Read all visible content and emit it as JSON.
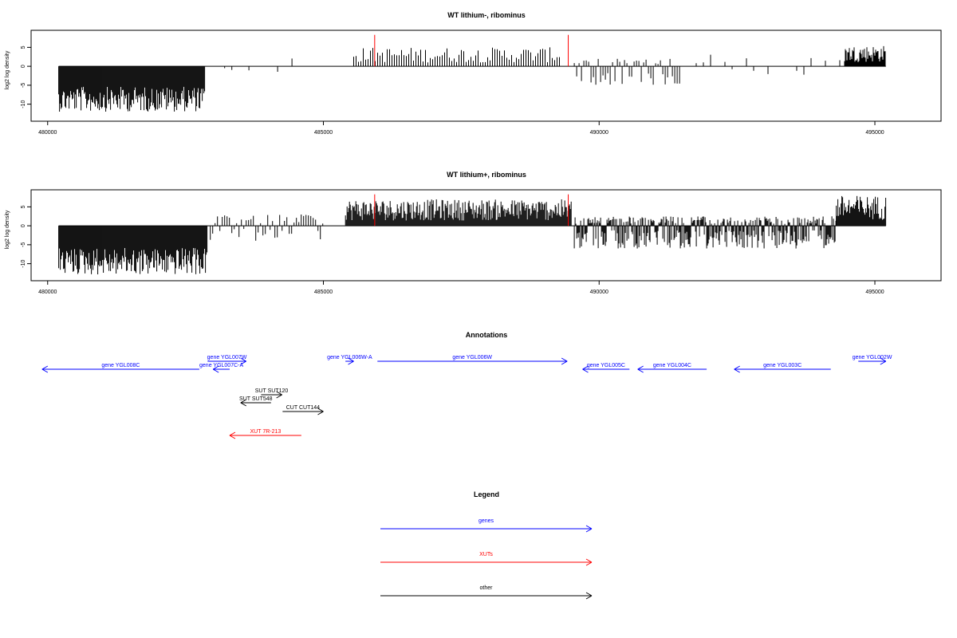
{
  "chart_data": [
    {
      "type": "bar",
      "title": "WT lithium-, ribominus",
      "xlabel": "",
      "ylabel": "log2 log density",
      "xlim": [
        479700,
        496200
      ],
      "ylim": [
        -14.5,
        9.5
      ],
      "x_ticks": [
        480000,
        485000,
        490000,
        495000
      ],
      "y_ticks": [
        -10,
        -5,
        0,
        5
      ],
      "x_tick_labels": [
        "480000",
        "485000",
        "490000",
        "495000"
      ],
      "y_tick_labels": [
        "-10",
        "-5",
        "0",
        "5"
      ],
      "grid": false,
      "profile": [
        {
          "x0": 480200,
          "x1": 482850,
          "min": -12,
          "max": 0,
          "density": "dense"
        },
        {
          "x0": 482950,
          "x1": 483600,
          "min": -1,
          "max": 0,
          "density": "sparse"
        },
        {
          "x0": 483650,
          "x1": 484700,
          "min": -2,
          "max": 2.5,
          "density": "sparse"
        },
        {
          "x0": 485550,
          "x1": 489300,
          "min": 0,
          "max": 5,
          "density": "medium"
        },
        {
          "x0": 489550,
          "x1": 491500,
          "min": -5,
          "max": 2,
          "density": "medium"
        },
        {
          "x0": 491500,
          "x1": 494450,
          "min": -3.5,
          "max": 3.5,
          "density": "sparse"
        },
        {
          "x0": 494450,
          "x1": 495200,
          "min": 0,
          "max": 5.5,
          "density": "dense"
        }
      ],
      "markers": [
        {
          "x": 485930,
          "y": 8.3,
          "color": "#ff0000"
        },
        {
          "x": 489440,
          "y": 8.3,
          "color": "#ff0000"
        }
      ]
    },
    {
      "type": "bar",
      "title": "WT lithium+, ribominus",
      "xlabel": "",
      "ylabel": "log2 log density",
      "xlim": [
        479700,
        496200
      ],
      "ylim": [
        -14.5,
        9.5
      ],
      "x_ticks": [
        480000,
        485000,
        490000,
        495000
      ],
      "y_ticks": [
        -10,
        -5,
        0,
        5
      ],
      "x_tick_labels": [
        "480000",
        "485000",
        "490000",
        "495000"
      ],
      "y_tick_labels": [
        "-10",
        "-5",
        "0",
        "5"
      ],
      "grid": false,
      "profile": [
        {
          "x0": 480200,
          "x1": 482900,
          "min": -13,
          "max": 0,
          "density": "dense"
        },
        {
          "x0": 482950,
          "x1": 485000,
          "min": -4,
          "max": 3,
          "density": "medium"
        },
        {
          "x0": 485400,
          "x1": 489500,
          "min": 0,
          "max": 7,
          "density": "dense"
        },
        {
          "x0": 489550,
          "x1": 494300,
          "min": -6,
          "max": 2.5,
          "density": "dense"
        },
        {
          "x0": 494300,
          "x1": 495200,
          "min": 0,
          "max": 8,
          "density": "dense"
        }
      ],
      "markers": [
        {
          "x": 485930,
          "y": 8.3,
          "color": "#ff0000"
        },
        {
          "x": 489440,
          "y": 8.3,
          "color": "#ff0000"
        }
      ]
    }
  ],
  "annotations": {
    "title": "Annotations",
    "items": [
      {
        "label": "gene YGL008C",
        "start": 482750,
        "end": 479900,
        "row": 1,
        "color": "#0000ff"
      },
      {
        "label": "gene YGL007C-A",
        "start": 483300,
        "end": 483000,
        "row": 1,
        "color": "#0000ff"
      },
      {
        "label": "gene YGL007W",
        "start": 482900,
        "end": 483600,
        "row": 0,
        "color": "#0000ff"
      },
      {
        "label": "gene YGL006W-A",
        "start": 485400,
        "end": 485550,
        "row": 0,
        "color": "#0000ff"
      },
      {
        "label": "gene YGL006W",
        "start": 485980,
        "end": 489420,
        "row": 0,
        "color": "#0000ff"
      },
      {
        "label": "gene YGL005C",
        "start": 490550,
        "end": 489700,
        "row": 1,
        "color": "#0000ff"
      },
      {
        "label": "gene YGL004C",
        "start": 491950,
        "end": 490700,
        "row": 1,
        "color": "#0000ff"
      },
      {
        "label": "gene YGL003C",
        "start": 494200,
        "end": 492450,
        "row": 1,
        "color": "#0000ff"
      },
      {
        "label": "gene YGL002W",
        "start": 494700,
        "end": 495200,
        "row": 0,
        "color": "#0000ff"
      },
      {
        "label": "SUT SUT120",
        "start": 483870,
        "end": 484250,
        "row": 3,
        "color": "#000000"
      },
      {
        "label": "SUT SUT548",
        "start": 484050,
        "end": 483500,
        "row": 4,
        "color": "#000000"
      },
      {
        "label": "CUT CUT144",
        "start": 484260,
        "end": 485000,
        "row": 5,
        "color": "#000000"
      },
      {
        "label": "XUT 7R-213",
        "start": 484600,
        "end": 483300,
        "row": 7,
        "color": "#ff0000"
      }
    ]
  },
  "legend": {
    "title": "Legend",
    "items": [
      {
        "label": "genes",
        "color": "#0000ff"
      },
      {
        "label": "XUTs",
        "color": "#ff0000"
      },
      {
        "label": "other",
        "color": "#000000"
      }
    ]
  }
}
